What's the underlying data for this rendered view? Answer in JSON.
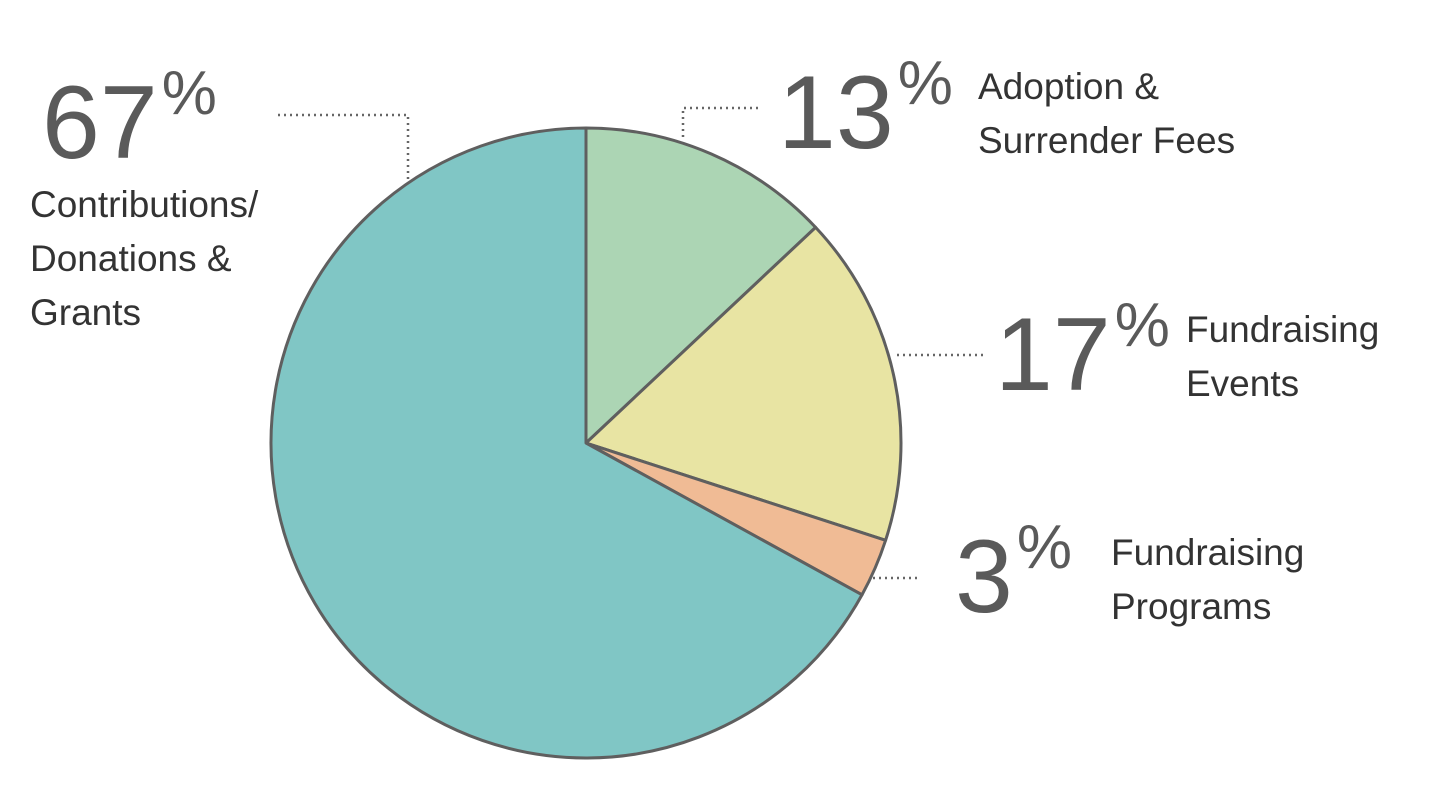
{
  "chart_data": {
    "type": "pie",
    "categories": [
      "Adoption &\nSurrender Fees",
      "Fundraising\nEvents",
      "Fundraising\nPrograms",
      "Contributions/\nDonations &\nGrants"
    ],
    "values": [
      13,
      17,
      3,
      67
    ],
    "value_labels": [
      "13%",
      "17%",
      "3%",
      "67%"
    ],
    "colors": [
      "#acd5b4",
      "#e8e4a3",
      "#f0bb95",
      "#80c6c5"
    ]
  }
}
